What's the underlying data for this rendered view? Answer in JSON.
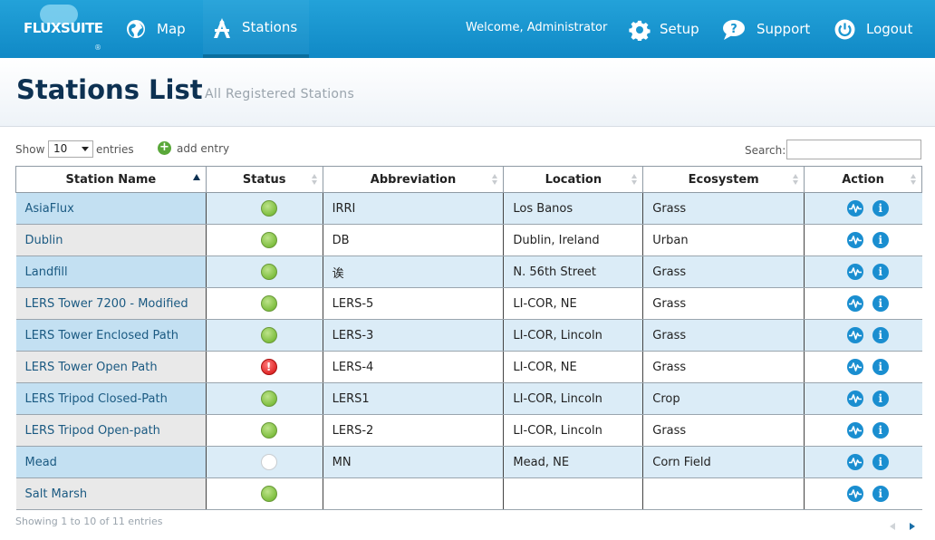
{
  "brand": {
    "logo_text": "FLUXSUITE",
    "logo_mark": "®"
  },
  "nav": {
    "map_label": "Map",
    "stations_label": "Stations",
    "welcome": "Welcome, Administrator",
    "setup_label": "Setup",
    "support_label": "Support",
    "logout_label": "Logout"
  },
  "header": {
    "title": "Stations List",
    "subtitle": "All Registered Stations"
  },
  "controls": {
    "show_label": "Show",
    "page_size": "10",
    "entries_label": "entries",
    "add_entry_label": "add entry",
    "search_label": "Search:",
    "search_value": ""
  },
  "table": {
    "columns": [
      "Station Name",
      "Status",
      "Abbreviation",
      "Location",
      "Ecosystem",
      "Action"
    ],
    "rows": [
      {
        "name": "AsiaFlux",
        "status": "ok",
        "abbr": "IRRI",
        "location": "Los Banos",
        "ecosystem": "Grass"
      },
      {
        "name": "Dublin",
        "status": "ok",
        "abbr": "DB",
        "location": "Dublin, Ireland",
        "ecosystem": "Urban"
      },
      {
        "name": "Landfill",
        "status": "ok",
        "abbr": "诶",
        "location": "N. 56th Street",
        "ecosystem": "Grass"
      },
      {
        "name": "LERS Tower 7200 - Modified",
        "status": "ok",
        "abbr": "LERS-5",
        "location": "LI-COR, NE",
        "ecosystem": "Grass"
      },
      {
        "name": "LERS Tower Enclosed Path",
        "status": "ok",
        "abbr": "LERS-3",
        "location": "LI-COR, Lincoln",
        "ecosystem": "Grass"
      },
      {
        "name": "LERS Tower Open Path",
        "status": "err",
        "abbr": "LERS-4",
        "location": "LI-COR, NE",
        "ecosystem": "Grass"
      },
      {
        "name": "LERS Tripod Closed-Path",
        "status": "ok",
        "abbr": "LERS1",
        "location": "LI-COR, Lincoln",
        "ecosystem": "Crop"
      },
      {
        "name": "LERS Tripod Open-path",
        "status": "ok",
        "abbr": "LERS-2",
        "location": "LI-COR, Lincoln",
        "ecosystem": "Grass"
      },
      {
        "name": "Mead",
        "status": "none",
        "abbr": "MN",
        "location": "Mead, NE",
        "ecosystem": "Corn Field"
      },
      {
        "name": "Salt Marsh",
        "status": "ok",
        "abbr": "",
        "location": "",
        "ecosystem": ""
      }
    ]
  },
  "footer": {
    "info": "Showing 1 to 10 of 11 entries"
  },
  "colors": {
    "navbar": "#1a96d0",
    "title": "#0d3152",
    "accent": "#1a8ed0",
    "status_ok": "#7fbf40",
    "status_err": "#e02a2a"
  }
}
